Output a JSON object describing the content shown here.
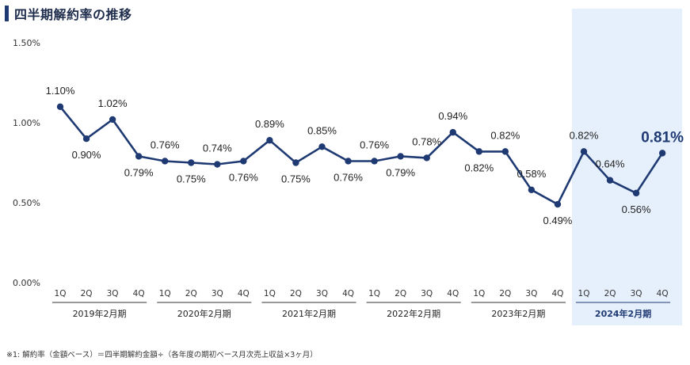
{
  "title": "四半期解約率の推移",
  "footnote": "※1: 解約率（金額ベース）＝四半期解約金額÷（各年度の期初ベース月次売上収益×3ヶ月）",
  "colors": {
    "line": "#1f3a73",
    "highlight_bg": "#e6f0fc",
    "highlight_text": "#1f3a73",
    "axis_text": "#333333"
  },
  "chart_data": {
    "type": "line",
    "title": "四半期解約率の推移",
    "ylabel": "",
    "ylim": [
      0,
      1.5
    ],
    "yticks": [
      {
        "value": 0,
        "label": "0.00%"
      },
      {
        "value": 0.5,
        "label": "0.50%"
      },
      {
        "value": 1.0,
        "label": "1.00%"
      },
      {
        "value": 1.5,
        "label": "1.50%"
      }
    ],
    "grid": false,
    "legend": "none",
    "highlighted_group": 5,
    "groups": [
      {
        "label": "2019年2月期",
        "quarters": [
          "1Q",
          "2Q",
          "3Q",
          "4Q"
        ],
        "values": [
          1.1,
          0.9,
          1.02,
          0.79
        ],
        "labels": [
          "1.10%",
          "0.90%",
          "1.02%",
          "0.79%"
        ],
        "label_pos": [
          "above",
          "below",
          "above",
          "below"
        ]
      },
      {
        "label": "2020年2月期",
        "quarters": [
          "1Q",
          "2Q",
          "3Q",
          "4Q"
        ],
        "values": [
          0.76,
          0.75,
          0.74,
          0.76
        ],
        "labels": [
          "0.76%",
          "0.75%",
          "0.74%",
          "0.76%"
        ],
        "label_pos": [
          "above",
          "below",
          "above",
          "below"
        ]
      },
      {
        "label": "2021年2月期",
        "quarters": [
          "1Q",
          "2Q",
          "3Q",
          "4Q"
        ],
        "values": [
          0.89,
          0.75,
          0.85,
          0.76
        ],
        "labels": [
          "0.89%",
          "0.75%",
          "0.85%",
          "0.76%"
        ],
        "label_pos": [
          "above",
          "below",
          "above",
          "below"
        ]
      },
      {
        "label": "2022年2月期",
        "quarters": [
          "1Q",
          "2Q",
          "3Q",
          "4Q"
        ],
        "values": [
          0.76,
          0.79,
          0.78,
          0.94
        ],
        "labels": [
          "0.76%",
          "0.79%",
          "0.78%",
          "0.94%"
        ],
        "label_pos": [
          "above",
          "below",
          "above",
          "above"
        ]
      },
      {
        "label": "2023年2月期",
        "quarters": [
          "1Q",
          "2Q",
          "3Q",
          "4Q"
        ],
        "values": [
          0.82,
          0.82,
          0.58,
          0.49
        ],
        "labels": [
          "0.82%",
          "0.82%",
          "0.58%",
          "0.49%"
        ],
        "label_pos": [
          "below",
          "above",
          "above",
          "below"
        ]
      },
      {
        "label": "2024年2月期",
        "quarters": [
          "1Q",
          "2Q",
          "3Q",
          "4Q"
        ],
        "values": [
          0.82,
          0.64,
          0.56,
          0.81
        ],
        "labels": [
          "0.82%",
          "0.64%",
          "0.56%",
          "0.81%"
        ],
        "label_pos": [
          "above",
          "above",
          "below",
          "above"
        ]
      }
    ]
  }
}
